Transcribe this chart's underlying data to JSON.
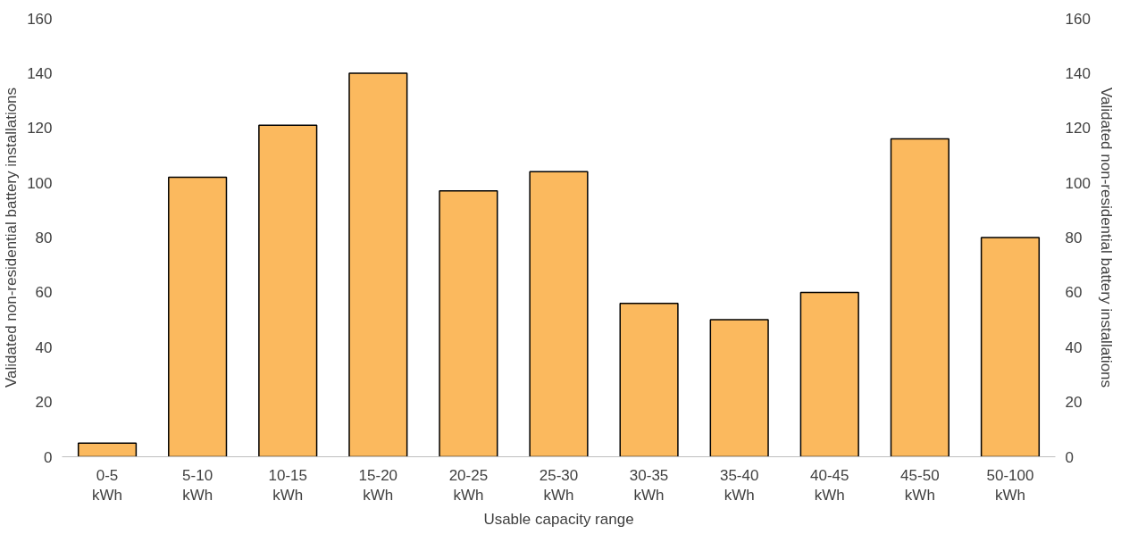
{
  "chart_data": {
    "type": "bar",
    "xlabel": "Usable capacity range",
    "ylabel": "Validated non-residential battery installations",
    "y2label": "Validated non-residential battery installations",
    "categories": [
      "0-5\nkWh",
      "5-10\nkWh",
      "10-15\nkWh",
      "15-20\nkWh",
      "20-25\nkWh",
      "25-30\nkWh",
      "30-35\nkWh",
      "35-40\nkWh",
      "40-45\nkWh",
      "45-50\nkWh",
      "50-100\nkWh"
    ],
    "values": [
      5,
      102,
      121,
      140,
      97,
      104,
      56,
      50,
      60,
      116,
      80
    ],
    "color": "#fbb95e",
    "ylim": [
      0,
      160
    ],
    "yticks": [
      0,
      20,
      40,
      60,
      80,
      100,
      120,
      140,
      160
    ],
    "y2lim": [
      0,
      160
    ],
    "y2ticks": [
      0,
      20,
      40,
      60,
      80,
      100,
      120,
      140,
      160
    ],
    "grid": false
  }
}
